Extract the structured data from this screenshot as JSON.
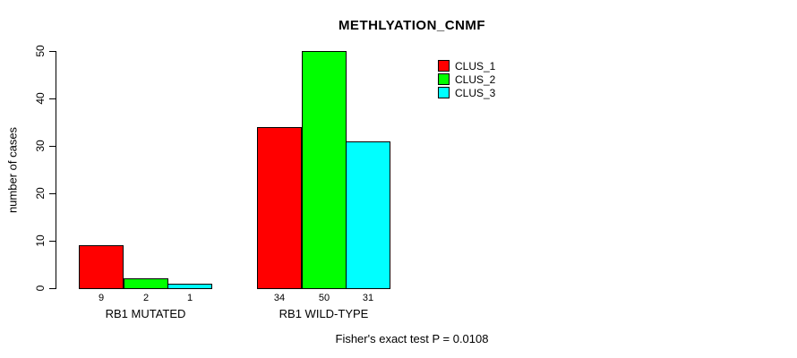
{
  "chart_data": {
    "type": "bar",
    "title": "METHLYATION_CNMF",
    "xlabel": "",
    "ylabel": "number of cases",
    "ylim": [
      0,
      50
    ],
    "yticks": [
      0,
      10,
      20,
      30,
      40,
      50
    ],
    "categories": [
      "RB1 MUTATED",
      "RB1 WILD-TYPE"
    ],
    "series": [
      {
        "name": "CLUS_1",
        "color": "#ff0000",
        "values": [
          9,
          34
        ]
      },
      {
        "name": "CLUS_2",
        "color": "#00ff00",
        "values": [
          2,
          50
        ]
      },
      {
        "name": "CLUS_3",
        "color": "#00ffff",
        "values": [
          1,
          31
        ]
      }
    ],
    "bar_value_labels": [
      [
        9,
        2,
        1
      ],
      [
        34,
        50,
        31
      ]
    ],
    "legend_position": "top-right",
    "legend_entries": [
      "CLUS_1",
      "CLUS_2",
      "CLUS_3"
    ],
    "grid": false,
    "axis_color": "#000000",
    "background_color": "#ffffff"
  },
  "footer": {
    "text": "Fisher's exact test P = 0.0108"
  }
}
